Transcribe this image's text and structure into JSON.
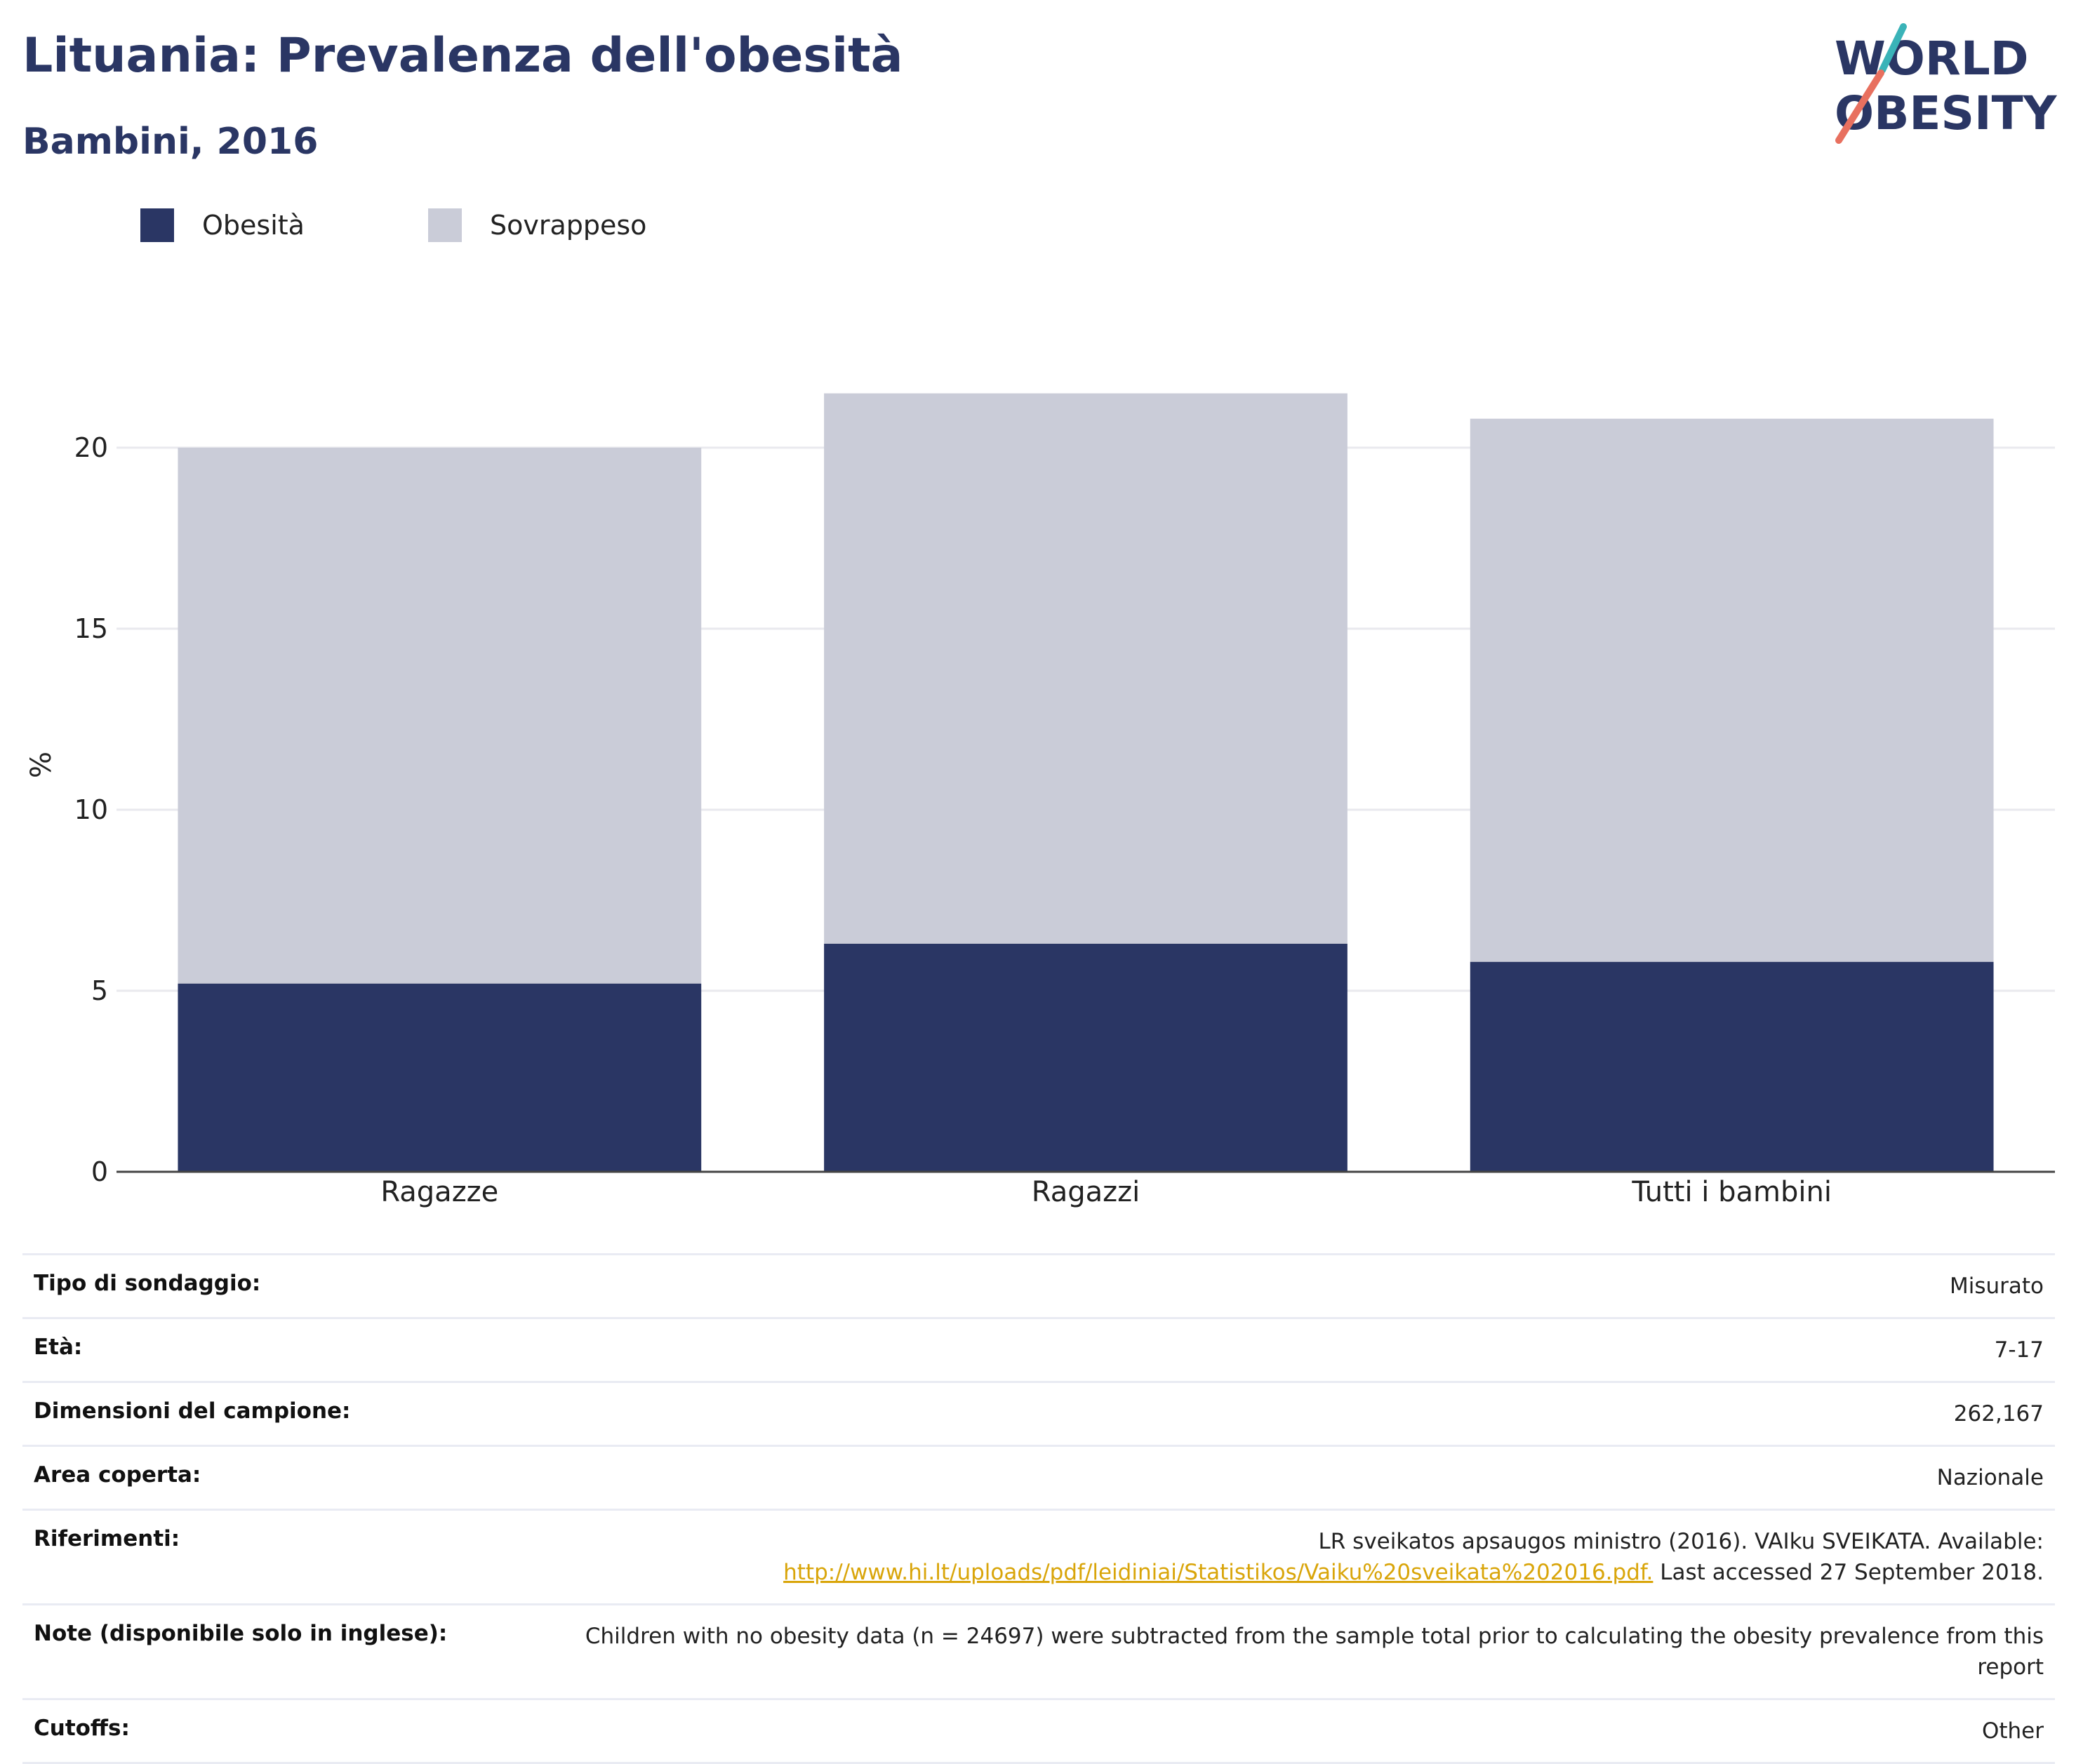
{
  "header": {
    "title": "Lituania: Prevalenza dell'obesità",
    "subtitle": "Bambini, 2016"
  },
  "logo": {
    "line1": "WORLD",
    "line2": "OBESITY"
  },
  "colors": {
    "obesity": "#2a3664",
    "overweight": "#caccd8",
    "accent_teal": "#3ab3b8",
    "accent_coral": "#e8705f"
  },
  "chart_data": {
    "type": "bar",
    "stacked": true,
    "categories": [
      "Ragazze",
      "Ragazzi",
      "Tutti i bambini"
    ],
    "series": [
      {
        "name": "Obesità",
        "values": [
          5.2,
          6.3,
          5.8
        ],
        "color": "#2a3664"
      },
      {
        "name": "Sovrappeso",
        "values": [
          14.8,
          15.2,
          15.0
        ],
        "color": "#caccd8"
      }
    ],
    "totals": [
      20.0,
      21.5,
      20.8
    ],
    "ylabel": "%",
    "ylim": [
      0,
      22
    ],
    "yticks": [
      0,
      5,
      10,
      15,
      20
    ],
    "grid": true,
    "legend_position": "top-left"
  },
  "info": {
    "rows": [
      {
        "label": "Tipo di sondaggio:",
        "value": "Misurato"
      },
      {
        "label": "Età:",
        "value": "7-17"
      },
      {
        "label": "Dimensioni del campione:",
        "value": "262,167"
      },
      {
        "label": "Area coperta:",
        "value": "Nazionale"
      },
      {
        "label": "Riferimenti:",
        "value": "LR sveikatos apsaugos ministro (2016). VAIku SVEIKATA. Available:",
        "link": "http://www.hi.lt/uploads/pdf/leidiniai/Statistikos/Vaiku%20sveikata%202016.pdf.",
        "after": " Last accessed 27 September 2018."
      },
      {
        "label": "Note (disponibile solo in inglese):",
        "value": "Children with no obesity data (n = 24697) were subtracted from the sample total prior to calculating the obesity prevalence from this report"
      },
      {
        "label": "Cutoffs:",
        "value": "Other"
      }
    ]
  }
}
